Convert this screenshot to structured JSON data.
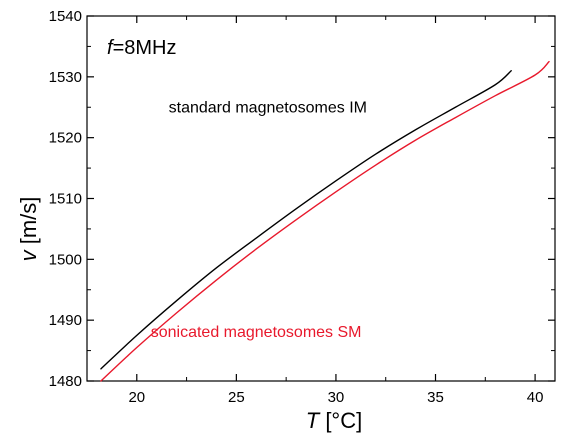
{
  "chart_data": {
    "type": "line",
    "xlabel_var": "T",
    "xlabel_unit": " [°C]",
    "ylabel_var": "v",
    "ylabel_unit": " [m/s]",
    "xlim": [
      17.5,
      41
    ],
    "ylim": [
      1480,
      1540
    ],
    "x_ticks": [
      20,
      25,
      30,
      35,
      40
    ],
    "y_ticks": [
      1480,
      1490,
      1500,
      1510,
      1520,
      1530,
      1540
    ],
    "x_minor_step": 2.5,
    "y_minor_step": 5,
    "grid": false,
    "frequency_label": {
      "var": "f",
      "rest": "=8MHz"
    },
    "series": [
      {
        "name": "standard magnetosomes IM",
        "color": "#000000",
        "x": [
          18.2,
          20,
          22,
          24,
          26,
          28,
          30,
          32,
          34,
          36,
          38,
          38.8
        ],
        "y": [
          1482,
          1487.5,
          1493.2,
          1498.6,
          1503.5,
          1508.3,
          1512.9,
          1517.3,
          1521.3,
          1525.0,
          1528.7,
          1531.0
        ]
      },
      {
        "name": "sonicated magnetosomes SM",
        "color": "#e8192c",
        "x": [
          18.2,
          20,
          22,
          24,
          26,
          28,
          30,
          32,
          34,
          36,
          38,
          40,
          40.7
        ],
        "y": [
          1480,
          1485.5,
          1491.2,
          1496.6,
          1501.7,
          1506.5,
          1511.1,
          1515.5,
          1519.6,
          1523.3,
          1526.9,
          1530.3,
          1532.5
        ]
      }
    ],
    "annotations": [
      {
        "text": "standard magnetosomes IM",
        "color": "#000000",
        "anchor_x": 21.6,
        "anchor_y": 1524.1
      },
      {
        "text": "sonicated magnetosomes SM",
        "color": "#e8192c",
        "anchor_x": 20.7,
        "anchor_y": 1487.2
      }
    ]
  }
}
